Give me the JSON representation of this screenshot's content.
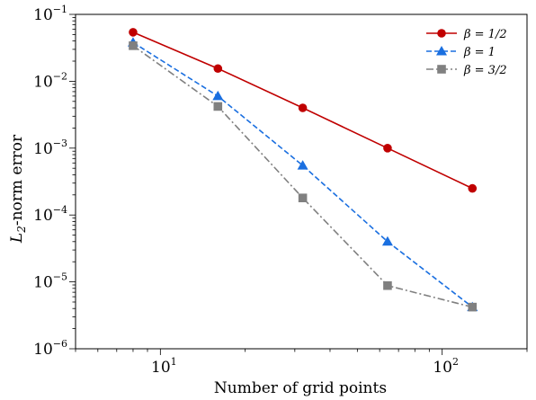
{
  "chart_data": {
    "type": "line",
    "xscale": "log",
    "yscale": "log",
    "xlim": [
      5,
      200
    ],
    "ylim": [
      1e-06,
      0.1
    ],
    "xlabel": "Number of grid points",
    "ylabel": "L_2-norm error",
    "ylabel_parts": {
      "main": "L",
      "sub": "2",
      "rest": "-norm error"
    },
    "x_ticks": [
      {
        "value": 10,
        "base": "10",
        "exp": "1"
      },
      {
        "value": 100,
        "base": "10",
        "exp": "2"
      }
    ],
    "y_ticks": [
      {
        "value": 1e-06,
        "base": "10",
        "exp": "−6"
      },
      {
        "value": 1e-05,
        "base": "10",
        "exp": "−5"
      },
      {
        "value": 0.0001,
        "base": "10",
        "exp": "−4"
      },
      {
        "value": 0.001,
        "base": "10",
        "exp": "−3"
      },
      {
        "value": 0.01,
        "base": "10",
        "exp": "−2"
      },
      {
        "value": 0.1,
        "base": "10",
        "exp": "−1"
      }
    ],
    "legend_position": "top-right",
    "grid": false,
    "x": [
      8,
      16,
      32,
      64,
      128
    ],
    "series": [
      {
        "name": "β = 1/2",
        "values": [
          0.054,
          0.0155,
          0.004,
          0.001,
          0.00025
        ],
        "color": "#c00000",
        "marker": "circle",
        "line": "solid"
      },
      {
        "name": "β = 1",
        "values": [
          0.038,
          0.006,
          0.00055,
          4e-05,
          4.2e-06
        ],
        "color": "#1a6fe0",
        "marker": "triangle",
        "line": "dashed"
      },
      {
        "name": "β = 3/2",
        "values": [
          0.034,
          0.0042,
          0.00018,
          8.8e-06,
          4.2e-06
        ],
        "color": "#808080",
        "marker": "square",
        "line": "dashdot"
      }
    ]
  }
}
